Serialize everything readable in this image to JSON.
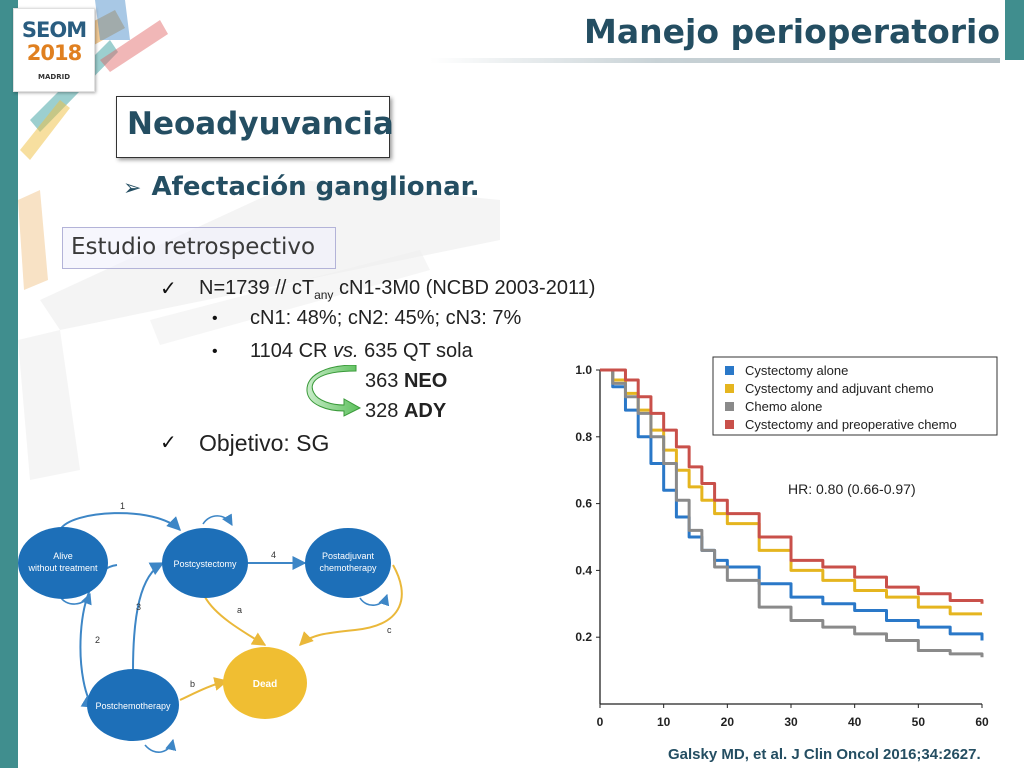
{
  "header": {
    "title": "Manejo perioperatorio",
    "logo": {
      "line1": "SEOM",
      "line2": "2018",
      "line3": "MADRID"
    }
  },
  "section": {
    "heading": "Neoadyuvancia",
    "bullet_arrow": "➢",
    "bullet": "Afectación ganglionar."
  },
  "study": {
    "label": "Estudio retrospectivo",
    "check_mark": "✓",
    "item1_prefix": "N=1739 // cT",
    "item1_sub": "any",
    "item1_suffix": " cN1-3M0 (NCBD 2003-2011)",
    "dot_mark": "•",
    "sub1": "cN1: 48%; cN2: 45%; cN3: 7%",
    "sub2_a": "1104 CR ",
    "sub2_b": "vs.",
    "sub2_c": " 635 QT sola",
    "neo_num": "363 ",
    "neo_label": "NEO",
    "ady_num": "328 ",
    "ady_label": "ADY",
    "objective": "Objetivo: SG"
  },
  "diagram": {
    "nodes": {
      "alive": [
        "Alive",
        "without treatment"
      ],
      "postcystectomy": "Postcystectomy",
      "postadjuvant": [
        "Postadjuvant",
        "chemotherapy"
      ],
      "postchemotherapy": "Postchemotherapy",
      "dead": "Dead"
    },
    "edge_labels": {
      "e1": "1",
      "e2": "2",
      "e3": "3",
      "e4": "4",
      "ea": "a",
      "eb": "b",
      "ec": "c"
    },
    "colors": {
      "node": "#1d6fb8",
      "dead": "#f0be32",
      "arrow_blue": "#3d86c6",
      "arrow_yellow": "#eab83a"
    }
  },
  "chart_data": {
    "type": "line",
    "title": "",
    "xlabel": "",
    "ylabel": "",
    "xlim": [
      0,
      60
    ],
    "ylim": [
      0,
      1.0
    ],
    "x_ticks": [
      "0",
      "10",
      "20",
      "30",
      "40",
      "50",
      "60"
    ],
    "y_ticks": [
      "0.2",
      "0.4",
      "0.6",
      "0.8",
      "1.0"
    ],
    "annotation": "HR: 0.80 (0.66-0.97)",
    "legend_position": "top-right",
    "series": [
      {
        "name": "Cystectomy alone",
        "color": "#2a78c8",
        "x": [
          0,
          2,
          4,
          6,
          8,
          10,
          12,
          14,
          16,
          18,
          20,
          25,
          30,
          35,
          40,
          45,
          50,
          55,
          60
        ],
        "y": [
          1.0,
          0.95,
          0.88,
          0.8,
          0.72,
          0.64,
          0.56,
          0.5,
          0.46,
          0.43,
          0.41,
          0.36,
          0.32,
          0.3,
          0.28,
          0.25,
          0.23,
          0.21,
          0.19
        ]
      },
      {
        "name": "Cystectomy and adjuvant chemo",
        "color": "#e5b51f",
        "x": [
          0,
          2,
          4,
          6,
          8,
          10,
          12,
          14,
          16,
          18,
          20,
          25,
          30,
          35,
          40,
          45,
          50,
          55,
          60
        ],
        "y": [
          1.0,
          0.97,
          0.93,
          0.88,
          0.82,
          0.76,
          0.7,
          0.65,
          0.61,
          0.57,
          0.54,
          0.46,
          0.4,
          0.37,
          0.34,
          0.32,
          0.29,
          0.27,
          0.27
        ]
      },
      {
        "name": "Chemo alone",
        "color": "#8a8a8a",
        "x": [
          0,
          2,
          4,
          6,
          8,
          10,
          12,
          14,
          16,
          18,
          20,
          25,
          30,
          35,
          40,
          45,
          50,
          55,
          60
        ],
        "y": [
          1.0,
          0.96,
          0.92,
          0.87,
          0.8,
          0.72,
          0.61,
          0.52,
          0.46,
          0.41,
          0.37,
          0.29,
          0.25,
          0.23,
          0.21,
          0.19,
          0.16,
          0.15,
          0.14
        ]
      },
      {
        "name": "Cystectomy and preoperative chemo",
        "color": "#c9504a",
        "x": [
          0,
          2,
          4,
          6,
          8,
          10,
          12,
          14,
          16,
          18,
          20,
          25,
          30,
          35,
          40,
          45,
          50,
          55,
          60
        ],
        "y": [
          1.0,
          1.0,
          0.97,
          0.92,
          0.87,
          0.82,
          0.77,
          0.71,
          0.66,
          0.61,
          0.57,
          0.5,
          0.43,
          0.41,
          0.38,
          0.35,
          0.33,
          0.31,
          0.3
        ]
      }
    ]
  },
  "citation": "Galsky MD, et al. J Clin Oncol 2016;34:2627."
}
